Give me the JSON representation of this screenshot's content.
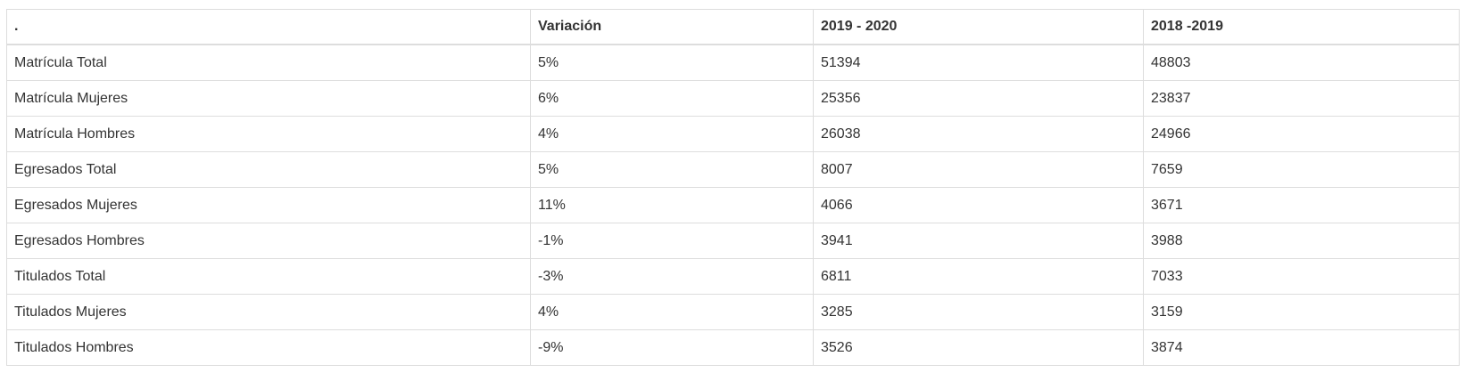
{
  "table": {
    "headers": [
      ".",
      "Variación",
      "2019 - 2020",
      "2018 -2019"
    ],
    "rows": [
      [
        "Matrícula Total",
        "5%",
        "51394",
        "48803"
      ],
      [
        "Matrícula Mujeres",
        "6%",
        "25356",
        "23837"
      ],
      [
        "Matrícula Hombres",
        "4%",
        "26038",
        "24966"
      ],
      [
        "Egresados Total",
        "5%",
        "8007",
        "7659"
      ],
      [
        "Egresados Mujeres",
        "11%",
        "4066",
        "3671"
      ],
      [
        "Egresados Hombres",
        "-1%",
        "3941",
        "3988"
      ],
      [
        "Titulados Total",
        "-3%",
        "6811",
        "7033"
      ],
      [
        "Titulados Mujeres",
        "4%",
        "3285",
        "3159"
      ],
      [
        "Titulados Hombres",
        "-9%",
        "3526",
        "3874"
      ]
    ]
  }
}
